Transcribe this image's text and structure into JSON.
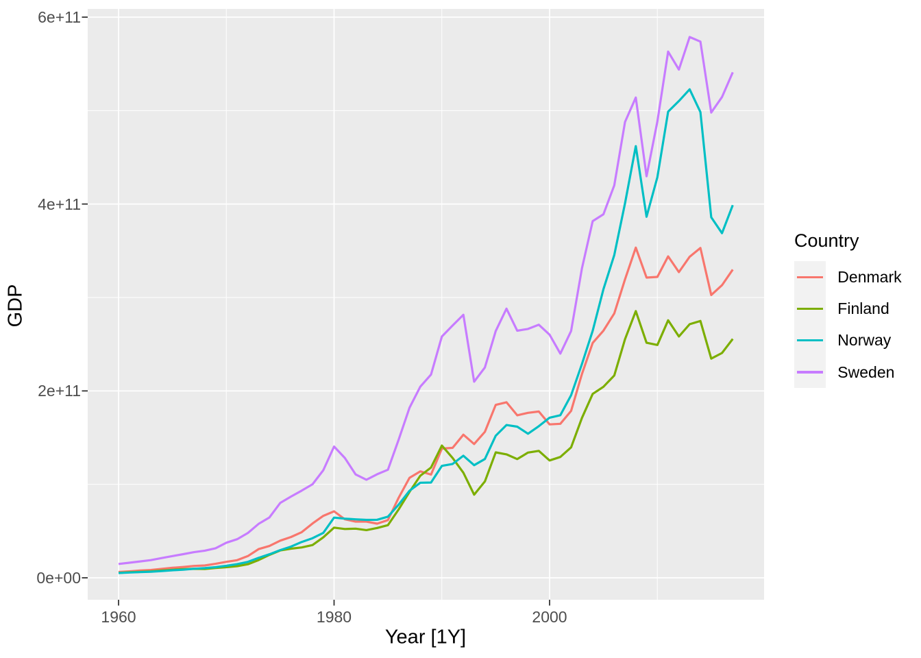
{
  "chart_data": {
    "type": "line",
    "title": "",
    "xlabel": "Year [1Y]",
    "ylabel": "GDP",
    "legend": {
      "title": "Country",
      "position": "right"
    },
    "grid": true,
    "panel_background": "#ebebeb",
    "gridline_color": "#ffffff",
    "tick_label_color": "#4d4d4d",
    "tick_mark_color": "#333333",
    "values_unit_note": "GDP in billions of USD (1 unit = 1e9)",
    "xlim_years": [
      1957.15,
      2019.85
    ],
    "ylim_billion": [
      -23.5,
      608.8
    ],
    "x_ticks": [
      {
        "year": 1960,
        "label": "1960"
      },
      {
        "year": 1980,
        "label": "1980"
      },
      {
        "year": 2000,
        "label": "2000"
      }
    ],
    "x_minor_gridlines_years": [
      1970,
      1990,
      2010
    ],
    "y_ticks": [
      {
        "value_billion": 0,
        "label": "0e+00"
      },
      {
        "value_billion": 200,
        "label": "2e+11"
      },
      {
        "value_billion": 400,
        "label": "4e+11"
      },
      {
        "value_billion": 600,
        "label": "6e+11"
      }
    ],
    "y_minor_gridlines_billion": [
      100,
      300,
      500
    ],
    "x": [
      1960,
      1961,
      1962,
      1963,
      1964,
      1965,
      1966,
      1967,
      1968,
      1969,
      1970,
      1971,
      1972,
      1973,
      1974,
      1975,
      1976,
      1977,
      1978,
      1979,
      1980,
      1981,
      1982,
      1983,
      1984,
      1985,
      1986,
      1987,
      1988,
      1989,
      1990,
      1991,
      1992,
      1993,
      1994,
      1995,
      1996,
      1997,
      1998,
      1999,
      2000,
      2001,
      2002,
      2003,
      2004,
      2005,
      2006,
      2007,
      2008,
      2009,
      2010,
      2011,
      2012,
      2013,
      2014,
      2015,
      2016,
      2017
    ],
    "series": [
      {
        "name": "Denmark",
        "color": "#F8766D",
        "values": [
          6.25,
          6.93,
          7.81,
          8.33,
          9.51,
          10.68,
          11.56,
          12.69,
          13.21,
          14.94,
          17.07,
          18.84,
          23.26,
          30.73,
          34.07,
          39.77,
          43.65,
          48.84,
          58.14,
          66.32,
          71.13,
          62.61,
          60.18,
          60.15,
          57.92,
          61.75,
          85.73,
          107.03,
          113.94,
          110.5,
          138.25,
          139.1,
          153.14,
          143.18,
          156.24,
          185.08,
          187.88,
          173.88,
          176.55,
          177.94,
          164.16,
          164.79,
          178.64,
          218.1,
          251.37,
          264.47,
          282.88,
          319.42,
          353.36,
          321.24,
          321.99,
          344.0,
          327.15,
          343.58,
          352.99,
          302.67,
          313.12,
          329.87
        ]
      },
      {
        "name": "Finland",
        "color": "#7CAE00",
        "values": [
          5.22,
          5.92,
          6.34,
          6.89,
          7.77,
          8.59,
          9.27,
          9.61,
          9.44,
          10.54,
          11.36,
          12.44,
          14.49,
          19.0,
          24.51,
          29.28,
          31.16,
          32.47,
          35.05,
          43.37,
          53.66,
          52.21,
          52.56,
          51.06,
          53.35,
          56.36,
          73.26,
          92.01,
          109.22,
          117.99,
          141.52,
          128.25,
          112.44,
          89.0,
          103.11,
          134.2,
          132.07,
          127.06,
          134.02,
          135.87,
          125.54,
          129.29,
          139.58,
          171.04,
          196.77,
          204.44,
          216.55,
          255.39,
          285.38,
          251.5,
          249.18,
          275.6,
          258.29,
          271.36,
          274.86,
          234.58,
          240.61,
          255.65
        ]
      },
      {
        "name": "Norway",
        "color": "#00BFC4",
        "values": [
          5.16,
          5.63,
          6.07,
          6.51,
          7.16,
          8.07,
          8.76,
          9.65,
          10.36,
          11.39,
          12.81,
          14.58,
          17.05,
          21.32,
          25.16,
          29.62,
          33.39,
          38.38,
          42.39,
          48.12,
          64.42,
          63.32,
          62.55,
          61.99,
          62.1,
          65.44,
          78.34,
          93.19,
          101.72,
          101.97,
          119.79,
          121.81,
          130.63,
          120.48,
          127.13,
          152.03,
          163.51,
          161.71,
          154.15,
          162.28,
          171.31,
          174.01,
          195.44,
          228.8,
          264.32,
          308.88,
          345.43,
          400.88,
          461.95,
          386.38,
          428.76,
          498.83,
          510.23,
          522.75,
          498.41,
          385.8,
          368.83,
          398.83
        ]
      },
      {
        "name": "Sweden",
        "color": "#C77CFF",
        "values": [
          14.82,
          16.15,
          17.51,
          18.95,
          21.09,
          23.26,
          25.3,
          27.46,
          29.08,
          31.65,
          37.56,
          41.28,
          47.94,
          57.73,
          64.54,
          80.11,
          86.9,
          93.28,
          100.12,
          115.19,
          140.46,
          128.27,
          110.62,
          104.96,
          110.8,
          115.67,
          147.98,
          182.0,
          204.49,
          217.52,
          258.16,
          269.97,
          281.47,
          209.85,
          225.1,
          264.05,
          288.06,
          264.45,
          266.31,
          270.78,
          260.16,
          239.9,
          264.15,
          331.11,
          381.7,
          389.04,
          420.03,
          487.82,
          513.97,
          429.66,
          488.38,
          563.11,
          543.88,
          578.74,
          573.82,
          497.92,
          514.46,
          540.98
        ]
      }
    ]
  }
}
